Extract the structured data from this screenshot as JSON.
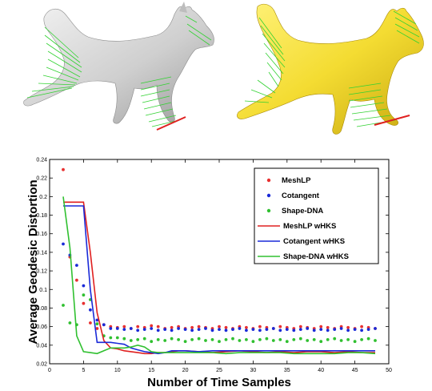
{
  "figure": {
    "top_images": {
      "left_model_color": "#d6d6d6",
      "right_model_color": "#f2dc3a",
      "correspondence_color": "#32d232",
      "highlight_color": "#e02020"
    }
  },
  "chart_data": {
    "type": "scatter",
    "title": "",
    "xlabel": "Number of Time Samples",
    "ylabel": "Average Geodesic Distortion",
    "xlim": [
      0,
      50
    ],
    "ylim": [
      0.02,
      0.24
    ],
    "xticks": [
      0,
      5,
      10,
      15,
      20,
      25,
      30,
      35,
      40,
      45,
      50
    ],
    "yticks": [
      0.02,
      0.04,
      0.06,
      0.08,
      0.1,
      0.12,
      0.14,
      0.16,
      0.18,
      0.2,
      0.22,
      0.24
    ],
    "xtick_labels": [
      "0",
      "5",
      "10",
      "15",
      "20",
      "25",
      "30",
      "35",
      "40",
      "45",
      "50"
    ],
    "ytick_labels": [
      "0.02",
      "0.04",
      "0.06",
      "0.08",
      "0.1",
      "0.12",
      "0.14",
      "0.16",
      "0.18",
      "0.2",
      "0.22",
      "0.24"
    ],
    "legend_position": "top-right",
    "grid": false,
    "series": [
      {
        "name": "MeshLP",
        "style": "dots",
        "color": "#e83030",
        "x": [
          2,
          3,
          4,
          5,
          6,
          7,
          8,
          9,
          10,
          11,
          12,
          13,
          14,
          15,
          16,
          17,
          18,
          19,
          20,
          21,
          22,
          23,
          24,
          25,
          26,
          27,
          28,
          29,
          30,
          31,
          32,
          33,
          34,
          35,
          36,
          37,
          38,
          39,
          40,
          41,
          42,
          43,
          44,
          45,
          46,
          47,
          48
        ],
        "y": [
          0.229,
          0.135,
          0.11,
          0.085,
          0.064,
          0.058,
          0.062,
          0.06,
          0.059,
          0.06,
          0.058,
          0.06,
          0.059,
          0.061,
          0.06,
          0.058,
          0.059,
          0.06,
          0.058,
          0.059,
          0.06,
          0.059,
          0.058,
          0.06,
          0.059,
          0.058,
          0.06,
          0.059,
          0.058,
          0.06,
          0.059,
          0.058,
          0.06,
          0.059,
          0.058,
          0.06,
          0.059,
          0.058,
          0.06,
          0.059,
          0.058,
          0.06,
          0.059,
          0.058,
          0.06,
          0.059,
          0.058
        ]
      },
      {
        "name": "Cotangent",
        "style": "dots",
        "color": "#1a2ad8",
        "x": [
          2,
          3,
          4,
          5,
          6,
          7,
          8,
          9,
          10,
          11,
          12,
          13,
          14,
          15,
          16,
          17,
          18,
          19,
          20,
          21,
          22,
          23,
          24,
          25,
          26,
          27,
          28,
          29,
          30,
          31,
          32,
          33,
          34,
          35,
          36,
          37,
          38,
          39,
          40,
          41,
          42,
          43,
          44,
          45,
          46,
          47,
          48
        ],
        "y": [
          0.149,
          0.137,
          0.126,
          0.104,
          0.078,
          0.067,
          0.062,
          0.058,
          0.058,
          0.057,
          0.058,
          0.056,
          0.057,
          0.058,
          0.056,
          0.057,
          0.056,
          0.058,
          0.057,
          0.056,
          0.057,
          0.058,
          0.056,
          0.057,
          0.056,
          0.057,
          0.058,
          0.056,
          0.057,
          0.056,
          0.057,
          0.058,
          0.056,
          0.057,
          0.056,
          0.057,
          0.058,
          0.056,
          0.057,
          0.056,
          0.057,
          0.058,
          0.056,
          0.057,
          0.056,
          0.057,
          0.058
        ]
      },
      {
        "name": "Shape-DNA",
        "style": "dots",
        "color": "#30c030",
        "x": [
          2,
          3,
          4,
          5,
          6,
          7,
          8,
          9,
          10,
          11,
          12,
          13,
          14,
          15,
          16,
          17,
          18,
          19,
          20,
          21,
          22,
          23,
          24,
          25,
          26,
          27,
          28,
          29,
          30,
          31,
          32,
          33,
          34,
          35,
          36,
          37,
          38,
          39,
          40,
          41,
          42,
          43,
          44,
          45,
          46,
          47,
          48
        ],
        "y": [
          0.083,
          0.064,
          0.062,
          0.094,
          0.089,
          0.063,
          0.05,
          0.048,
          0.048,
          0.047,
          0.045,
          0.046,
          0.047,
          0.044,
          0.046,
          0.045,
          0.047,
          0.046,
          0.044,
          0.046,
          0.047,
          0.045,
          0.046,
          0.044,
          0.046,
          0.047,
          0.045,
          0.046,
          0.044,
          0.046,
          0.047,
          0.045,
          0.046,
          0.044,
          0.046,
          0.047,
          0.045,
          0.046,
          0.044,
          0.046,
          0.047,
          0.045,
          0.046,
          0.044,
          0.046,
          0.047,
          0.045
        ]
      },
      {
        "name": "MeshLP wHKS",
        "style": "line",
        "color": "#e02020",
        "x": [
          2,
          3,
          4,
          5,
          6,
          7,
          8,
          9,
          10,
          11,
          12,
          13,
          14,
          15,
          16,
          17,
          18,
          19,
          20,
          22,
          24,
          26,
          28,
          30,
          32,
          34,
          36,
          38,
          40,
          42,
          44,
          46,
          48
        ],
        "y": [
          0.194,
          0.194,
          0.194,
          0.194,
          0.14,
          0.075,
          0.045,
          0.037,
          0.036,
          0.034,
          0.033,
          0.032,
          0.031,
          0.031,
          0.032,
          0.032,
          0.033,
          0.034,
          0.034,
          0.033,
          0.032,
          0.033,
          0.034,
          0.033,
          0.032,
          0.033,
          0.032,
          0.033,
          0.033,
          0.032,
          0.033,
          0.032,
          0.032
        ]
      },
      {
        "name": "Cotangent wHKS",
        "style": "line",
        "color": "#1a2ad8",
        "x": [
          2,
          3,
          4,
          5,
          6,
          7,
          8,
          9,
          10,
          11,
          12,
          13,
          14,
          15,
          16,
          17,
          18,
          19,
          20,
          22,
          24,
          26,
          28,
          30,
          32,
          34,
          36,
          38,
          40,
          42,
          44,
          46,
          48
        ],
        "y": [
          0.19,
          0.19,
          0.19,
          0.19,
          0.1,
          0.043,
          0.043,
          0.043,
          0.042,
          0.041,
          0.037,
          0.035,
          0.033,
          0.032,
          0.031,
          0.032,
          0.034,
          0.034,
          0.034,
          0.033,
          0.034,
          0.034,
          0.034,
          0.034,
          0.034,
          0.034,
          0.034,
          0.034,
          0.034,
          0.034,
          0.034,
          0.034,
          0.034
        ]
      },
      {
        "name": "Shape-DNA wHKS",
        "style": "line",
        "color": "#30c030",
        "x": [
          2,
          3,
          4,
          5,
          6,
          7,
          8,
          9,
          10,
          11,
          12,
          13,
          14,
          15,
          16,
          17,
          18,
          19,
          20,
          22,
          24,
          26,
          28,
          30,
          32,
          34,
          36,
          38,
          40,
          42,
          44,
          46,
          48
        ],
        "y": [
          0.2,
          0.145,
          0.05,
          0.033,
          0.032,
          0.031,
          0.034,
          0.037,
          0.037,
          0.037,
          0.038,
          0.04,
          0.038,
          0.033,
          0.032,
          0.032,
          0.032,
          0.032,
          0.032,
          0.032,
          0.032,
          0.031,
          0.032,
          0.032,
          0.032,
          0.032,
          0.031,
          0.031,
          0.031,
          0.031,
          0.032,
          0.032,
          0.031
        ]
      }
    ]
  }
}
